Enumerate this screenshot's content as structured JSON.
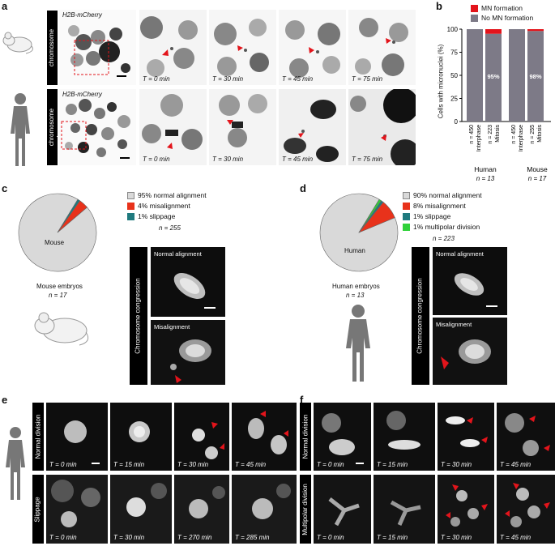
{
  "panels": {
    "a": "a",
    "b": "b",
    "c": "c",
    "d": "d",
    "e": "e",
    "f": "f"
  },
  "a": {
    "mouse_row_label": "Lagging chromosome\nmouse",
    "human_row_label": "Lagging chromosome\nhuman",
    "stain": "H2B-mCherry",
    "mouse_times": [
      "T = 0 min",
      "T = 30 min",
      "T = 45 min",
      "T = 75 min"
    ],
    "human_times": [
      "T = 0 min",
      "T = 30 min",
      "T = 45 min",
      "T = 75 min"
    ]
  },
  "b": {
    "legend": [
      {
        "label": "MN formation",
        "color": "#e3141b"
      },
      {
        "label": "No MN formation",
        "color": "#7d7a87"
      }
    ],
    "ylabel": "Cells with micronuclei (%)",
    "yticks": [
      "0",
      "25",
      "50",
      "75",
      "100"
    ],
    "bars": [
      {
        "n": "n = 450",
        "phase": "Interphase",
        "mn": 0,
        "pct_label": ""
      },
      {
        "n": "n = 223",
        "phase": "Mitosis",
        "mn": 5,
        "pct_label": "95%"
      },
      {
        "n": "n = 450",
        "phase": "Interphase",
        "mn": 0,
        "pct_label": ""
      },
      {
        "n": "n = 255",
        "phase": "Mitosis",
        "mn": 2,
        "pct_label": "98%"
      }
    ],
    "groups": [
      {
        "name": "Human",
        "n": "n = 13"
      },
      {
        "name": "Mouse",
        "n": "n = 17"
      }
    ]
  },
  "chart_data": {
    "type": "bar",
    "categories": [
      "Human Interphase",
      "Human Mitosis",
      "Mouse Interphase",
      "Mouse Mitosis"
    ],
    "series": [
      {
        "name": "No MN formation",
        "values": [
          100,
          95,
          100,
          98
        ]
      },
      {
        "name": "MN formation",
        "values": [
          0,
          5,
          0,
          2
        ]
      }
    ],
    "ylabel": "Cells with micronuclei (%)",
    "ylim": [
      0,
      100
    ]
  },
  "c": {
    "pie_label": "Mouse",
    "legend": [
      {
        "label": "95% normal alignment",
        "color": "#d9d9d9",
        "value": 95
      },
      {
        "label": "4% misalignment",
        "color": "#e8321b",
        "value": 4
      },
      {
        "label": "1% slippage",
        "color": "#1f7a7e",
        "value": 1
      }
    ],
    "n": "n = 255",
    "caption": "Mouse embryos",
    "caption_n": "n = 17",
    "side_label": "Chromosome congression",
    "top": "Normal alignment",
    "bottom": "Misalignment"
  },
  "d": {
    "pie_label": "Human",
    "legend": [
      {
        "label": "90% normal alignment",
        "color": "#d9d9d9",
        "value": 90
      },
      {
        "label": "8% misalignment",
        "color": "#e8321b",
        "value": 8
      },
      {
        "label": "1% slippage",
        "color": "#1f7a7e",
        "value": 1
      },
      {
        "label": "1% multipolar division",
        "color": "#2fd13a",
        "value": 1
      }
    ],
    "n": "n = 223",
    "caption": "Human embryos",
    "caption_n": "n = 13",
    "side_label": "Chromosome congression",
    "top": "Normal alignment",
    "bottom": "Misalignment"
  },
  "e": {
    "row1": "Normal division",
    "row2": "Slippage",
    "t1": [
      "T = 0 min",
      "T = 15 min",
      "T = 30 min",
      "T = 45 min"
    ],
    "t2": [
      "T = 0 min",
      "T = 30 min",
      "T = 270 min",
      "T = 285 min"
    ]
  },
  "f": {
    "row1": "Normal division",
    "row2": "Multipolar division",
    "t1": [
      "T = 0 min",
      "T = 15 min",
      "T = 30 min",
      "T = 45 min"
    ],
    "t2": [
      "T = 0 min",
      "T = 15 min",
      "T = 30 min",
      "T = 45 min"
    ]
  }
}
